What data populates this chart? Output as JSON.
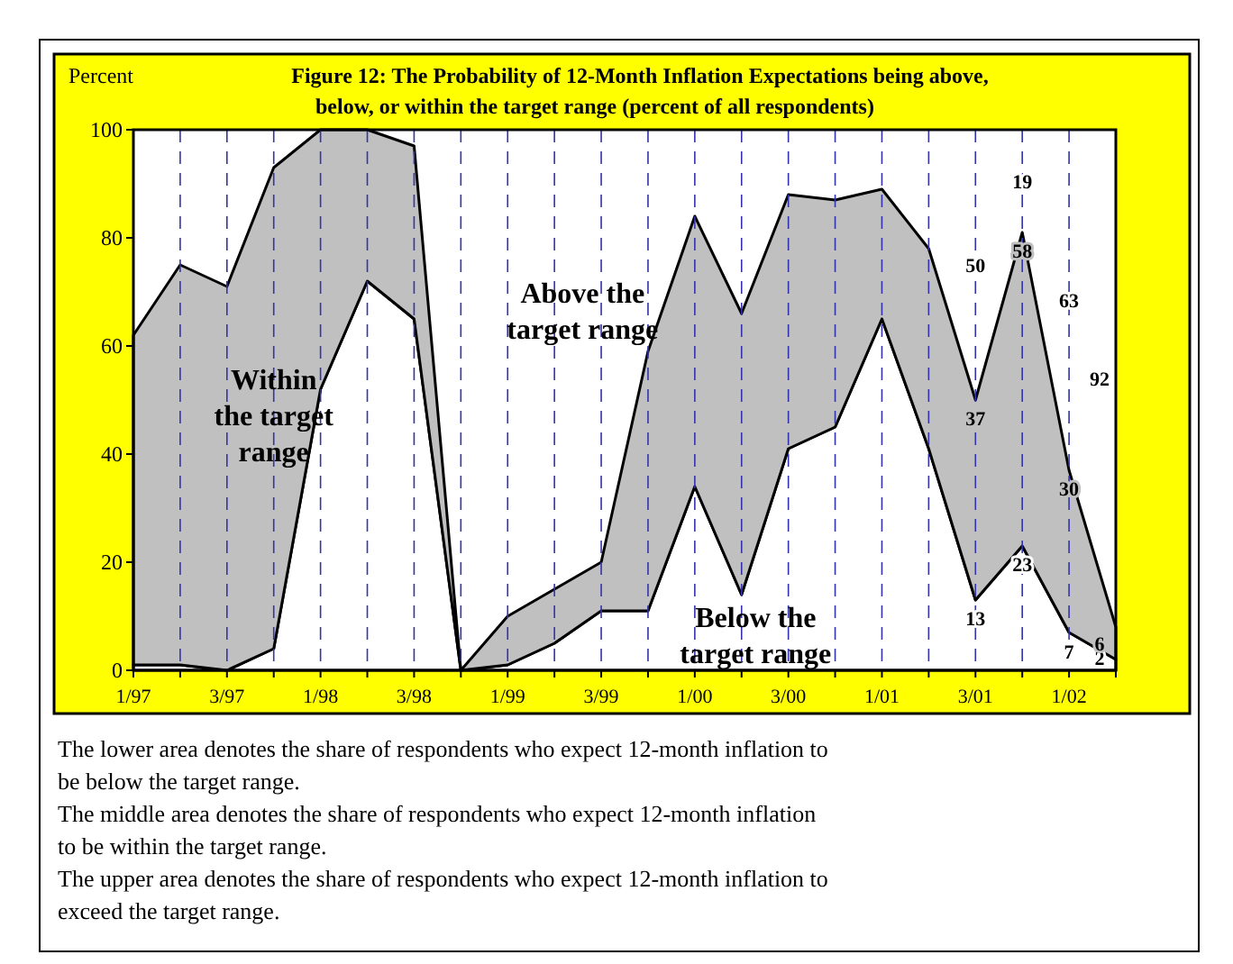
{
  "chart_data": {
    "type": "area",
    "stacked": true,
    "title": "Figure 12: The Probability of 12-Month Inflation Expectations being above, below, or within the target range (percent of all respondents)",
    "ylabel": "Percent",
    "categories": [
      "1/97",
      null,
      "3/97",
      null,
      "1/98",
      null,
      "3/98",
      null,
      "1/99",
      null,
      "3/99",
      null,
      "1/00",
      null,
      "3/00",
      null,
      "1/01",
      null,
      "3/01",
      null,
      "1/02",
      null
    ],
    "series": [
      {
        "name": "Below the target range",
        "color": "#ffffff",
        "values": [
          1,
          1,
          0,
          4,
          52,
          72,
          65,
          0,
          1,
          5,
          11,
          11,
          34,
          14,
          41,
          45,
          65,
          41,
          13,
          23,
          7,
          2
        ],
        "value_labels": [
          null,
          null,
          null,
          null,
          null,
          null,
          null,
          null,
          null,
          null,
          null,
          null,
          null,
          null,
          null,
          null,
          null,
          null,
          "13",
          "23",
          "7",
          "2"
        ]
      },
      {
        "name": "Within the target range",
        "color": "#c0c0c0",
        "values": [
          61,
          74,
          71,
          89,
          48,
          28,
          32,
          0,
          9,
          10,
          9,
          48,
          50,
          52,
          47,
          42,
          24,
          37,
          37,
          58,
          30,
          6
        ],
        "value_labels": [
          null,
          null,
          null,
          null,
          null,
          null,
          null,
          null,
          null,
          null,
          null,
          null,
          null,
          null,
          null,
          null,
          null,
          null,
          "37",
          "58",
          "30",
          "6"
        ]
      }
    ],
    "ylim": [
      0,
      100
    ],
    "yticks": [
      0,
      20,
      40,
      60,
      80,
      100
    ],
    "grid": "x",
    "annotations": [
      "Above the target range",
      "50",
      "19",
      "63",
      "92",
      "The lower area denotes the share of respondents who expect 12-month inflation to be below the target range.",
      "The middle area denotes the share of respondents who expect 12-month inflation to be within the target range.",
      "The upper area denotes the share of respondents who expect 12-month inflation to exceed the target range."
    ]
  }
}
